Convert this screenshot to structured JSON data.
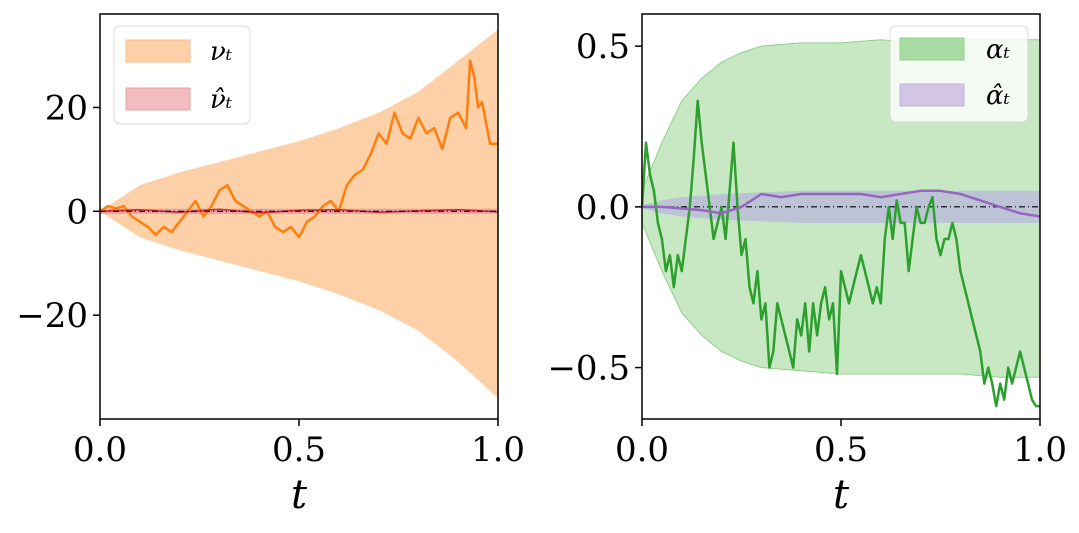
{
  "chart_data": [
    {
      "type": "line",
      "xlabel": "t",
      "ylabel": "",
      "xlim": [
        0,
        1
      ],
      "ylim": [
        -40,
        38
      ],
      "xticks": [
        "0.0",
        "0.5",
        "1.0"
      ],
      "yticks": [
        "−20",
        "0",
        "20"
      ],
      "xtick_values": [
        0,
        0.5,
        1
      ],
      "ytick_values": [
        -20,
        0,
        20
      ],
      "grid": false,
      "legend_position": "top-left",
      "legend": [
        "νₜ",
        "ν̂ₜ"
      ],
      "colors": {
        "band_nu": "#fdd0a8",
        "band_nu_hat": "#e8a0a6",
        "line_nu": "#ff7f0e",
        "line_nu_hat": "#d62728",
        "mean": "#000000"
      },
      "band_nu": {
        "x": [
          0,
          0.1,
          0.2,
          0.3,
          0.4,
          0.5,
          0.6,
          0.7,
          0.8,
          0.9,
          1.0
        ],
        "upper": [
          0,
          5,
          7.5,
          9.5,
          11.5,
          13.5,
          16,
          19,
          23,
          29,
          35
        ],
        "lower": [
          0,
          -5,
          -7.5,
          -9.5,
          -11.5,
          -13.5,
          -16,
          -19,
          -23,
          -29,
          -36
        ]
      },
      "band_nu_hat": {
        "x": [
          0,
          1
        ],
        "upper": [
          0.5,
          0.5
        ],
        "lower": [
          -0.5,
          -0.5
        ]
      },
      "series": [
        {
          "x": [
            0,
            0.02,
            0.04,
            0.06,
            0.08,
            0.1,
            0.12,
            0.14,
            0.16,
            0.18,
            0.2,
            0.22,
            0.24,
            0.26,
            0.28,
            0.3,
            0.32,
            0.34,
            0.36,
            0.38,
            0.4,
            0.42,
            0.44,
            0.46,
            0.48,
            0.5,
            0.52,
            0.54,
            0.56,
            0.58,
            0.6,
            0.62,
            0.64,
            0.66,
            0.68,
            0.7,
            0.72,
            0.74,
            0.76,
            0.78,
            0.8,
            0.82,
            0.84,
            0.86,
            0.88,
            0.9,
            0.92,
            0.93,
            0.94,
            0.95,
            0.96,
            0.97,
            0.98,
            1.0
          ],
          "values": [
            0,
            1,
            0.5,
            1,
            -1,
            -2,
            -3,
            -4.5,
            -3,
            -4,
            -2,
            0,
            2,
            -1,
            1,
            4,
            5,
            2,
            1,
            0,
            -1,
            0,
            -3,
            -4,
            -3,
            -5,
            -2,
            -1,
            1,
            2,
            0,
            5,
            7,
            8,
            11,
            15,
            13,
            19,
            15,
            14,
            18,
            15,
            16,
            12,
            18,
            19,
            16,
            29,
            26,
            20,
            21,
            17,
            13,
            13
          ]
        },
        {
          "x": [
            0,
            0.1,
            0.2,
            0.3,
            0.4,
            0.5,
            0.6,
            0.7,
            0.8,
            0.9,
            1.0
          ],
          "values": [
            0,
            0.3,
            -0.2,
            0.4,
            -0.3,
            0.2,
            0.3,
            -0.2,
            0.1,
            0.3,
            -0.1
          ]
        }
      ]
    },
    {
      "type": "line",
      "xlabel": "t",
      "ylabel": "",
      "xlim": [
        0,
        1
      ],
      "ylim": [
        -0.66,
        0.6
      ],
      "xticks": [
        "0.0",
        "0.5",
        "1.0"
      ],
      "yticks": [
        "−0.5",
        "0.0",
        "0.5"
      ],
      "xtick_values": [
        0,
        0.5,
        1
      ],
      "ytick_values": [
        -0.5,
        0,
        0.5
      ],
      "grid": false,
      "legend_position": "top-right",
      "legend": [
        "αₜ",
        "α̂ₜ"
      ],
      "colors": {
        "band_alpha": "#c8e8c4",
        "band_alpha_hat": "#b8bcd8",
        "line_alpha": "#2ca02c",
        "line_alpha_hat": "#9467bd",
        "mean": "#000000"
      },
      "band_alpha": {
        "x": [
          0,
          0.05,
          0.1,
          0.15,
          0.2,
          0.25,
          0.3,
          0.4,
          0.5,
          0.6,
          0.7,
          0.8,
          0.9,
          1.0
        ],
        "upper": [
          0.05,
          0.2,
          0.33,
          0.4,
          0.45,
          0.48,
          0.5,
          0.51,
          0.51,
          0.52,
          0.51,
          0.52,
          0.52,
          0.52
        ],
        "lower": [
          -0.05,
          -0.2,
          -0.33,
          -0.4,
          -0.45,
          -0.48,
          -0.5,
          -0.51,
          -0.52,
          -0.52,
          -0.52,
          -0.52,
          -0.53,
          -0.53
        ]
      },
      "band_alpha_hat": {
        "x": [
          0,
          0.05,
          0.1,
          0.2,
          0.3,
          0.4,
          0.5,
          0.6,
          0.7,
          0.8,
          0.9,
          1.0
        ],
        "upper": [
          0.005,
          0.02,
          0.03,
          0.04,
          0.045,
          0.05,
          0.05,
          0.05,
          0.05,
          0.05,
          0.05,
          0.05
        ],
        "lower": [
          -0.005,
          -0.02,
          -0.03,
          -0.04,
          -0.045,
          -0.05,
          -0.05,
          -0.05,
          -0.05,
          -0.05,
          -0.05,
          -0.05
        ]
      },
      "series": [
        {
          "x": [
            0,
            0.01,
            0.02,
            0.03,
            0.04,
            0.05,
            0.06,
            0.07,
            0.08,
            0.09,
            0.1,
            0.11,
            0.12,
            0.13,
            0.14,
            0.15,
            0.16,
            0.17,
            0.18,
            0.19,
            0.2,
            0.21,
            0.22,
            0.23,
            0.24,
            0.25,
            0.26,
            0.27,
            0.28,
            0.29,
            0.3,
            0.31,
            0.32,
            0.33,
            0.34,
            0.35,
            0.36,
            0.37,
            0.38,
            0.39,
            0.4,
            0.41,
            0.42,
            0.43,
            0.44,
            0.45,
            0.46,
            0.47,
            0.48,
            0.49,
            0.5,
            0.51,
            0.52,
            0.53,
            0.54,
            0.55,
            0.56,
            0.57,
            0.58,
            0.59,
            0.6,
            0.61,
            0.62,
            0.63,
            0.64,
            0.65,
            0.66,
            0.67,
            0.68,
            0.69,
            0.7,
            0.71,
            0.72,
            0.73,
            0.74,
            0.75,
            0.76,
            0.77,
            0.78,
            0.79,
            0.8,
            0.81,
            0.82,
            0.83,
            0.84,
            0.85,
            0.86,
            0.87,
            0.88,
            0.89,
            0.9,
            0.91,
            0.92,
            0.93,
            0.94,
            0.95,
            0.96,
            0.97,
            0.98,
            0.99,
            1.0
          ],
          "values": [
            0,
            0.2,
            0.1,
            0.05,
            -0.05,
            -0.1,
            -0.2,
            -0.15,
            -0.25,
            -0.15,
            -0.2,
            -0.1,
            0,
            0.15,
            0.33,
            0.2,
            0.1,
            0,
            -0.1,
            -0.05,
            0,
            -0.1,
            0.05,
            0.2,
            0,
            -0.15,
            -0.1,
            -0.25,
            -0.3,
            -0.2,
            -0.35,
            -0.3,
            -0.5,
            -0.45,
            -0.3,
            -0.35,
            -0.4,
            -0.45,
            -0.5,
            -0.35,
            -0.4,
            -0.3,
            -0.45,
            -0.3,
            -0.4,
            -0.3,
            -0.25,
            -0.35,
            -0.3,
            -0.52,
            -0.2,
            -0.25,
            -0.3,
            -0.25,
            -0.2,
            -0.15,
            -0.2,
            -0.25,
            -0.3,
            -0.25,
            -0.3,
            -0.1,
            0,
            -0.1,
            0.02,
            -0.05,
            -0.05,
            -0.2,
            -0.1,
            0,
            -0.05,
            -0.05,
            0,
            0.03,
            -0.1,
            -0.15,
            -0.1,
            -0.1,
            -0.05,
            -0.1,
            -0.2,
            -0.25,
            -0.3,
            -0.35,
            -0.4,
            -0.45,
            -0.55,
            -0.5,
            -0.55,
            -0.62,
            -0.55,
            -0.6,
            -0.5,
            -0.55,
            -0.5,
            -0.45,
            -0.5,
            -0.55,
            -0.6,
            -0.62,
            -0.62
          ]
        },
        {
          "x": [
            0,
            0.05,
            0.1,
            0.15,
            0.2,
            0.25,
            0.3,
            0.35,
            0.4,
            0.45,
            0.5,
            0.55,
            0.6,
            0.65,
            0.7,
            0.75,
            0.8,
            0.85,
            0.9,
            0.95,
            1.0
          ],
          "values": [
            0,
            0,
            -0.005,
            -0.01,
            -0.02,
            0,
            0.04,
            0.03,
            0.04,
            0.04,
            0.04,
            0.04,
            0.03,
            0.04,
            0.05,
            0.05,
            0.04,
            0.02,
            0,
            -0.02,
            -0.03
          ]
        }
      ]
    }
  ]
}
